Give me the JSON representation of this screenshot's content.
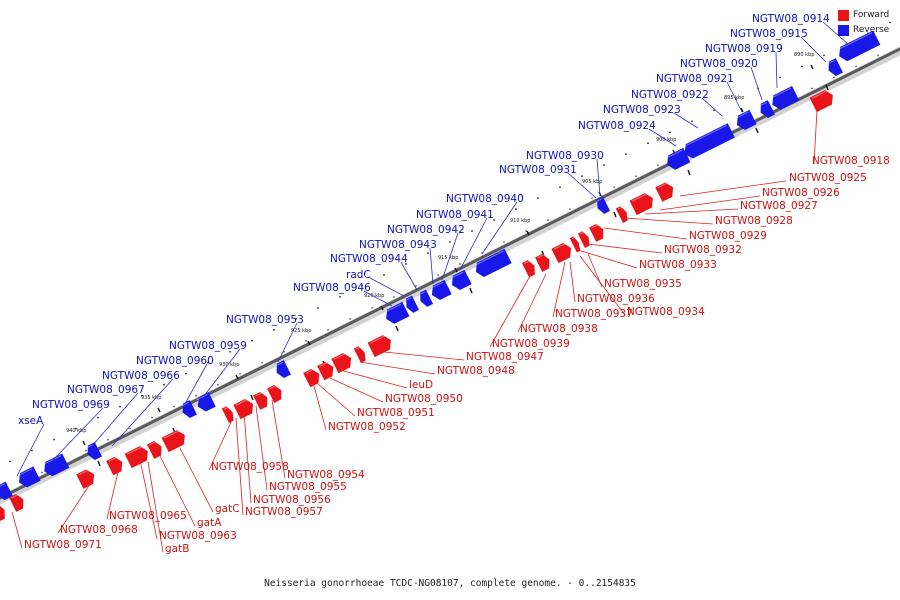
{
  "caption": "Neisseria gonorrhoeae TCDC-NG08107, complete genome. - 0..2154835",
  "legend": {
    "forward_label": "Forward",
    "reverse_label": "Reverse",
    "forward_color": "#e8141a",
    "reverse_color": "#1818e8"
  },
  "colors": {
    "forward_label": "#cc1111",
    "reverse_label": "#1111bb",
    "forward_leader": "#dd2222",
    "reverse_leader": "#2a2ad0"
  },
  "scale_ticks": [
    "890 kbp",
    "895 kbp",
    "900 kbp",
    "905 kbp",
    "910 kbp",
    "915 kbp",
    "920 kbp",
    "925 kbp",
    "930 kbp",
    "935 kbp",
    "940 kbp"
  ],
  "reverse_genes": [
    "NGTW08_0914",
    "NGTW08_0915",
    "NGTW08_0919",
    "NGTW08_0920",
    "NGTW08_0921",
    "NGTW08_0922",
    "NGTW08_0923",
    "NGTW08_0924",
    "NGTW08_0930",
    "NGTW08_0931",
    "NGTW08_0940",
    "NGTW08_0941",
    "NGTW08_0942",
    "NGTW08_0943",
    "NGTW08_0944",
    "radC",
    "NGTW08_0946",
    "NGTW08_0953",
    "NGTW08_0959",
    "NGTW08_0960",
    "NGTW08_0966",
    "NGTW08_0967",
    "NGTW08_0969",
    "xseA"
  ],
  "forward_genes": [
    "NGTW08_0918",
    "NGTW08_0925",
    "NGTW08_0926",
    "NGTW08_0927",
    "NGTW08_0928",
    "NGTW08_0929",
    "NGTW08_0932",
    "NGTW08_0933",
    "NGTW08_0935",
    "NGTW08_0936",
    "NGTW08_0934",
    "NGTW08_0937",
    "NGTW08_0938",
    "NGTW08_0939",
    "NGTW08_0947",
    "NGTW08_0948",
    "leuD",
    "NGTW08_0950",
    "NGTW08_0951",
    "NGTW08_0952",
    "NGTW08_0954",
    "NGTW08_0955",
    "NGTW08_0956",
    "NGTW08_0957",
    "NGTW08_0958",
    "gatC",
    "gatA",
    "NGTW08_0963",
    "gatB",
    "NGTW08_0965",
    "NGTW08_0968",
    "NGTW08_0971"
  ]
}
